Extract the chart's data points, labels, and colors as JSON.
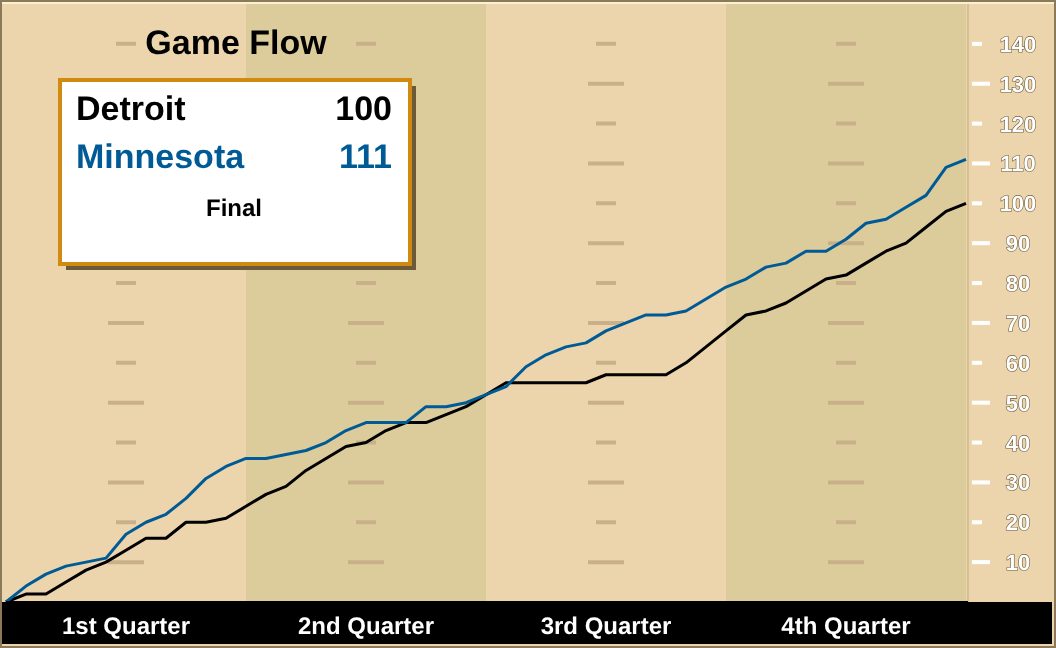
{
  "chart_data": {
    "type": "line",
    "title": "Game Flow",
    "annotations": [
      "100",
      "111",
      "Final"
    ],
    "categories": [
      null,
      null,
      null,
      null,
      null,
      null,
      "1st Quarter",
      null,
      null,
      null,
      null,
      null,
      null,
      null,
      null,
      null,
      null,
      null,
      "2nd Quarter",
      null,
      null,
      null,
      null,
      null,
      null,
      null,
      null,
      null,
      null,
      null,
      "3rd Quarter",
      null,
      null,
      null,
      null,
      null,
      null,
      null,
      null,
      null,
      null,
      null,
      "4th Quarter",
      null,
      null,
      null,
      null,
      null,
      null
    ],
    "ylim": [
      0,
      150
    ],
    "yticks": [
      10,
      20,
      30,
      40,
      50,
      60,
      70,
      80,
      90,
      100,
      110,
      120,
      130,
      140
    ],
    "legend": "top left",
    "line_style": "solid",
    "marker": "none",
    "series": [
      {
        "name": "Detroit",
        "color": "#000000",
        "values": [
          0,
          2,
          2,
          5,
          8,
          10,
          13,
          16,
          16,
          20,
          20,
          21,
          24,
          27,
          29,
          33,
          36,
          39,
          40,
          43,
          45,
          45,
          47,
          49,
          52,
          55,
          55,
          55,
          55,
          55,
          57,
          57,
          57,
          57,
          60,
          64,
          68,
          72,
          73,
          75,
          78,
          81,
          82,
          85,
          88,
          90,
          94,
          98,
          100
        ]
      },
      {
        "name": "Minnesota",
        "color": "#005a96",
        "values": [
          0,
          4,
          7,
          9,
          10,
          11,
          17,
          20,
          22,
          26,
          31,
          34,
          36,
          36,
          37,
          38,
          40,
          43,
          45,
          45,
          45,
          49,
          49,
          50,
          52,
          54,
          59,
          62,
          64,
          65,
          68,
          70,
          72,
          72,
          73,
          76,
          79,
          81,
          84,
          85,
          88,
          88,
          91,
          95,
          96,
          99,
          102,
          109,
          111
        ]
      }
    ]
  }
}
